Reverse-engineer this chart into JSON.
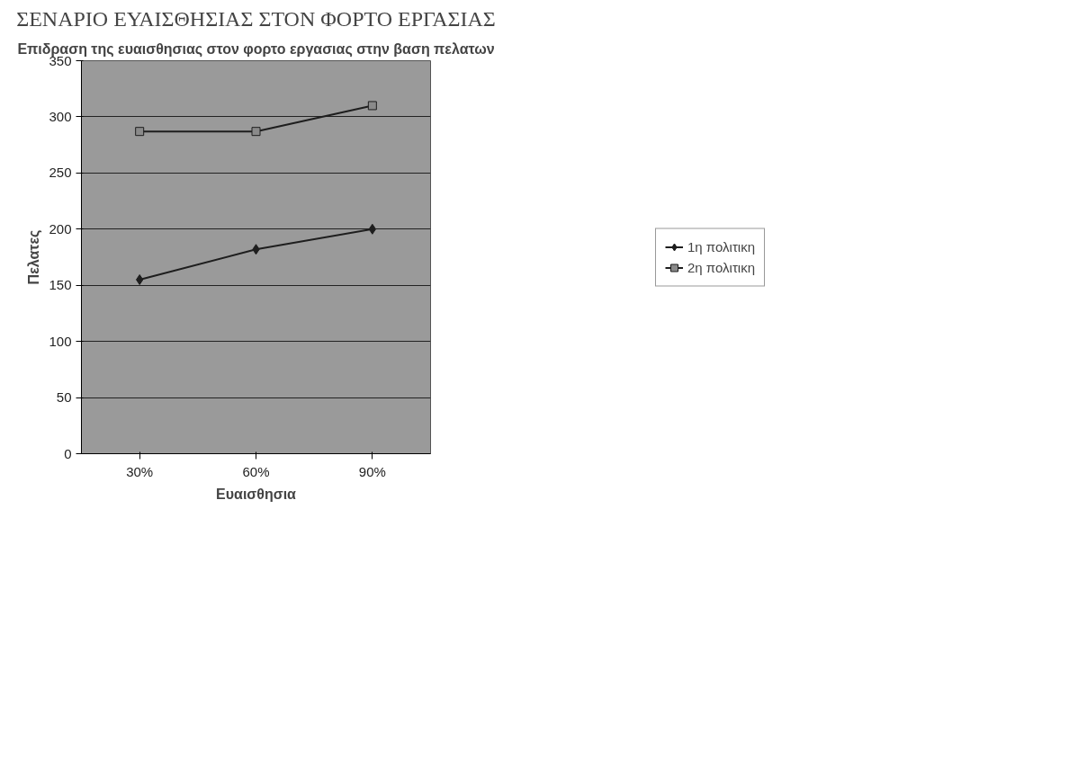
{
  "chart_data": {
    "type": "line",
    "title": "ΣΕΝΑΡΙΟ ΕΥΑΙΣΘΗΣΙΑΣ ΣΤΟΝ ΦΟΡΤΟ ΕΡΓΑΣΙΑΣ",
    "subtitle": "Επιδραση της ευαισθησιας στον φορτο εργασιας στην βαση πελατων",
    "xlabel": "Ευαισθησια",
    "ylabel": "Πελατες",
    "categories": [
      "30%",
      "60%",
      "90%"
    ],
    "series": [
      {
        "name": "1η πολιτικη",
        "color": "#1e1e1e",
        "marker": "diamond",
        "values": [
          155,
          182,
          200
        ]
      },
      {
        "name": "2η πολιτικη",
        "color": "#1e1e1e",
        "marker": "square",
        "values": [
          287,
          287,
          310
        ]
      }
    ],
    "ylim": [
      0,
      350
    ],
    "yticks": [
      0,
      50,
      100,
      150,
      200,
      250,
      300,
      350
    ],
    "grid": "y",
    "legend": "right",
    "line_style": "solid"
  }
}
